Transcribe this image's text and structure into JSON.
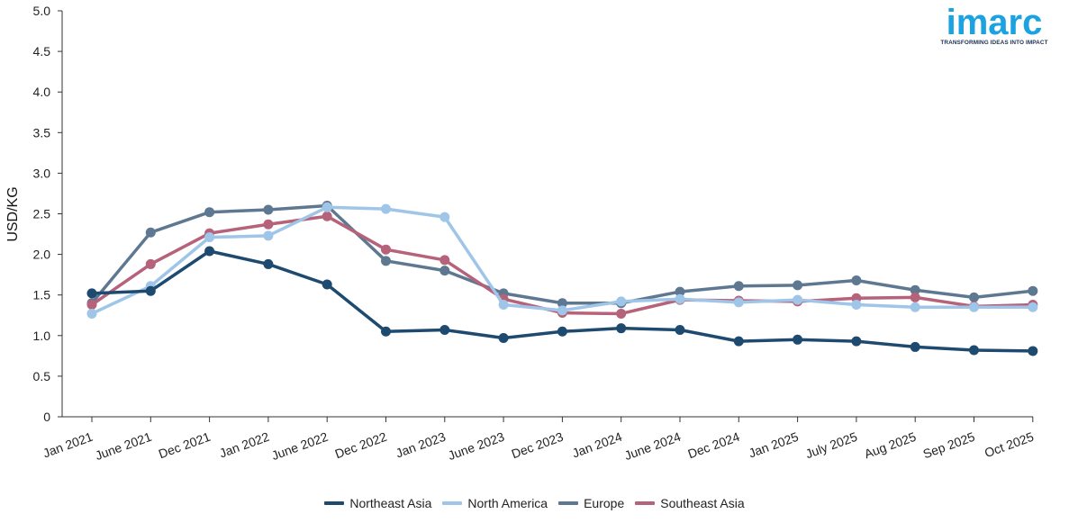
{
  "chart_data": {
    "type": "line",
    "title": "",
    "xlabel": "",
    "ylabel": "USD/KG",
    "ylim": [
      0,
      5.0
    ],
    "yticks": [
      "0",
      "0.5",
      "1.0",
      "1.5",
      "2.0",
      "2.5",
      "3.0",
      "3.5",
      "4.0",
      "4.5",
      "5.0"
    ],
    "grid": false,
    "legend_position": "bottom-center",
    "categories": [
      "Jan 2021",
      "June 2021",
      "Dec 2021",
      "Jan 2022",
      "June 2022",
      "Dec 2022",
      "Jan 2023",
      "June 2023",
      "Dec 2023",
      "Jan 2024",
      "June 2024",
      "Dec 2024",
      "Jan 2025",
      "July 2025",
      "Aug 2025",
      "Sep 2025",
      "Oct 2025"
    ],
    "series": [
      {
        "name": "Europe",
        "color": "#5e7891",
        "values": [
          1.4,
          2.27,
          2.52,
          2.55,
          2.6,
          1.92,
          1.8,
          1.52,
          1.4,
          1.4,
          1.54,
          1.61,
          1.62,
          1.68,
          1.56,
          1.47,
          1.55
        ]
      },
      {
        "name": "Southeast Asia",
        "color": "#b5627a",
        "values": [
          1.38,
          1.88,
          2.26,
          2.37,
          2.47,
          2.06,
          1.93,
          1.45,
          1.28,
          1.27,
          1.44,
          1.43,
          1.42,
          1.46,
          1.47,
          1.36,
          1.38
        ]
      },
      {
        "name": "North America",
        "color": "#9fc5e8",
        "values": [
          1.27,
          1.61,
          2.21,
          2.23,
          2.58,
          2.56,
          2.46,
          1.38,
          1.31,
          1.42,
          1.45,
          1.41,
          1.44,
          1.38,
          1.35,
          1.35,
          1.35
        ]
      },
      {
        "name": "Northeast Asia",
        "color": "#1f4a70",
        "values": [
          1.52,
          1.55,
          2.04,
          1.88,
          1.63,
          1.05,
          1.07,
          0.97,
          1.05,
          1.09,
          1.07,
          0.93,
          0.95,
          0.93,
          0.86,
          0.82,
          0.81
        ]
      }
    ],
    "legend_order": [
      "Northeast Asia",
      "North America",
      "Europe",
      "Southeast Asia"
    ]
  },
  "logo": {
    "word": "imarc",
    "tagline": "TRANSFORMING IDEAS INTO IMPACT",
    "color": "#1aa3e0",
    "tagline_color": "#1b2f52"
  }
}
